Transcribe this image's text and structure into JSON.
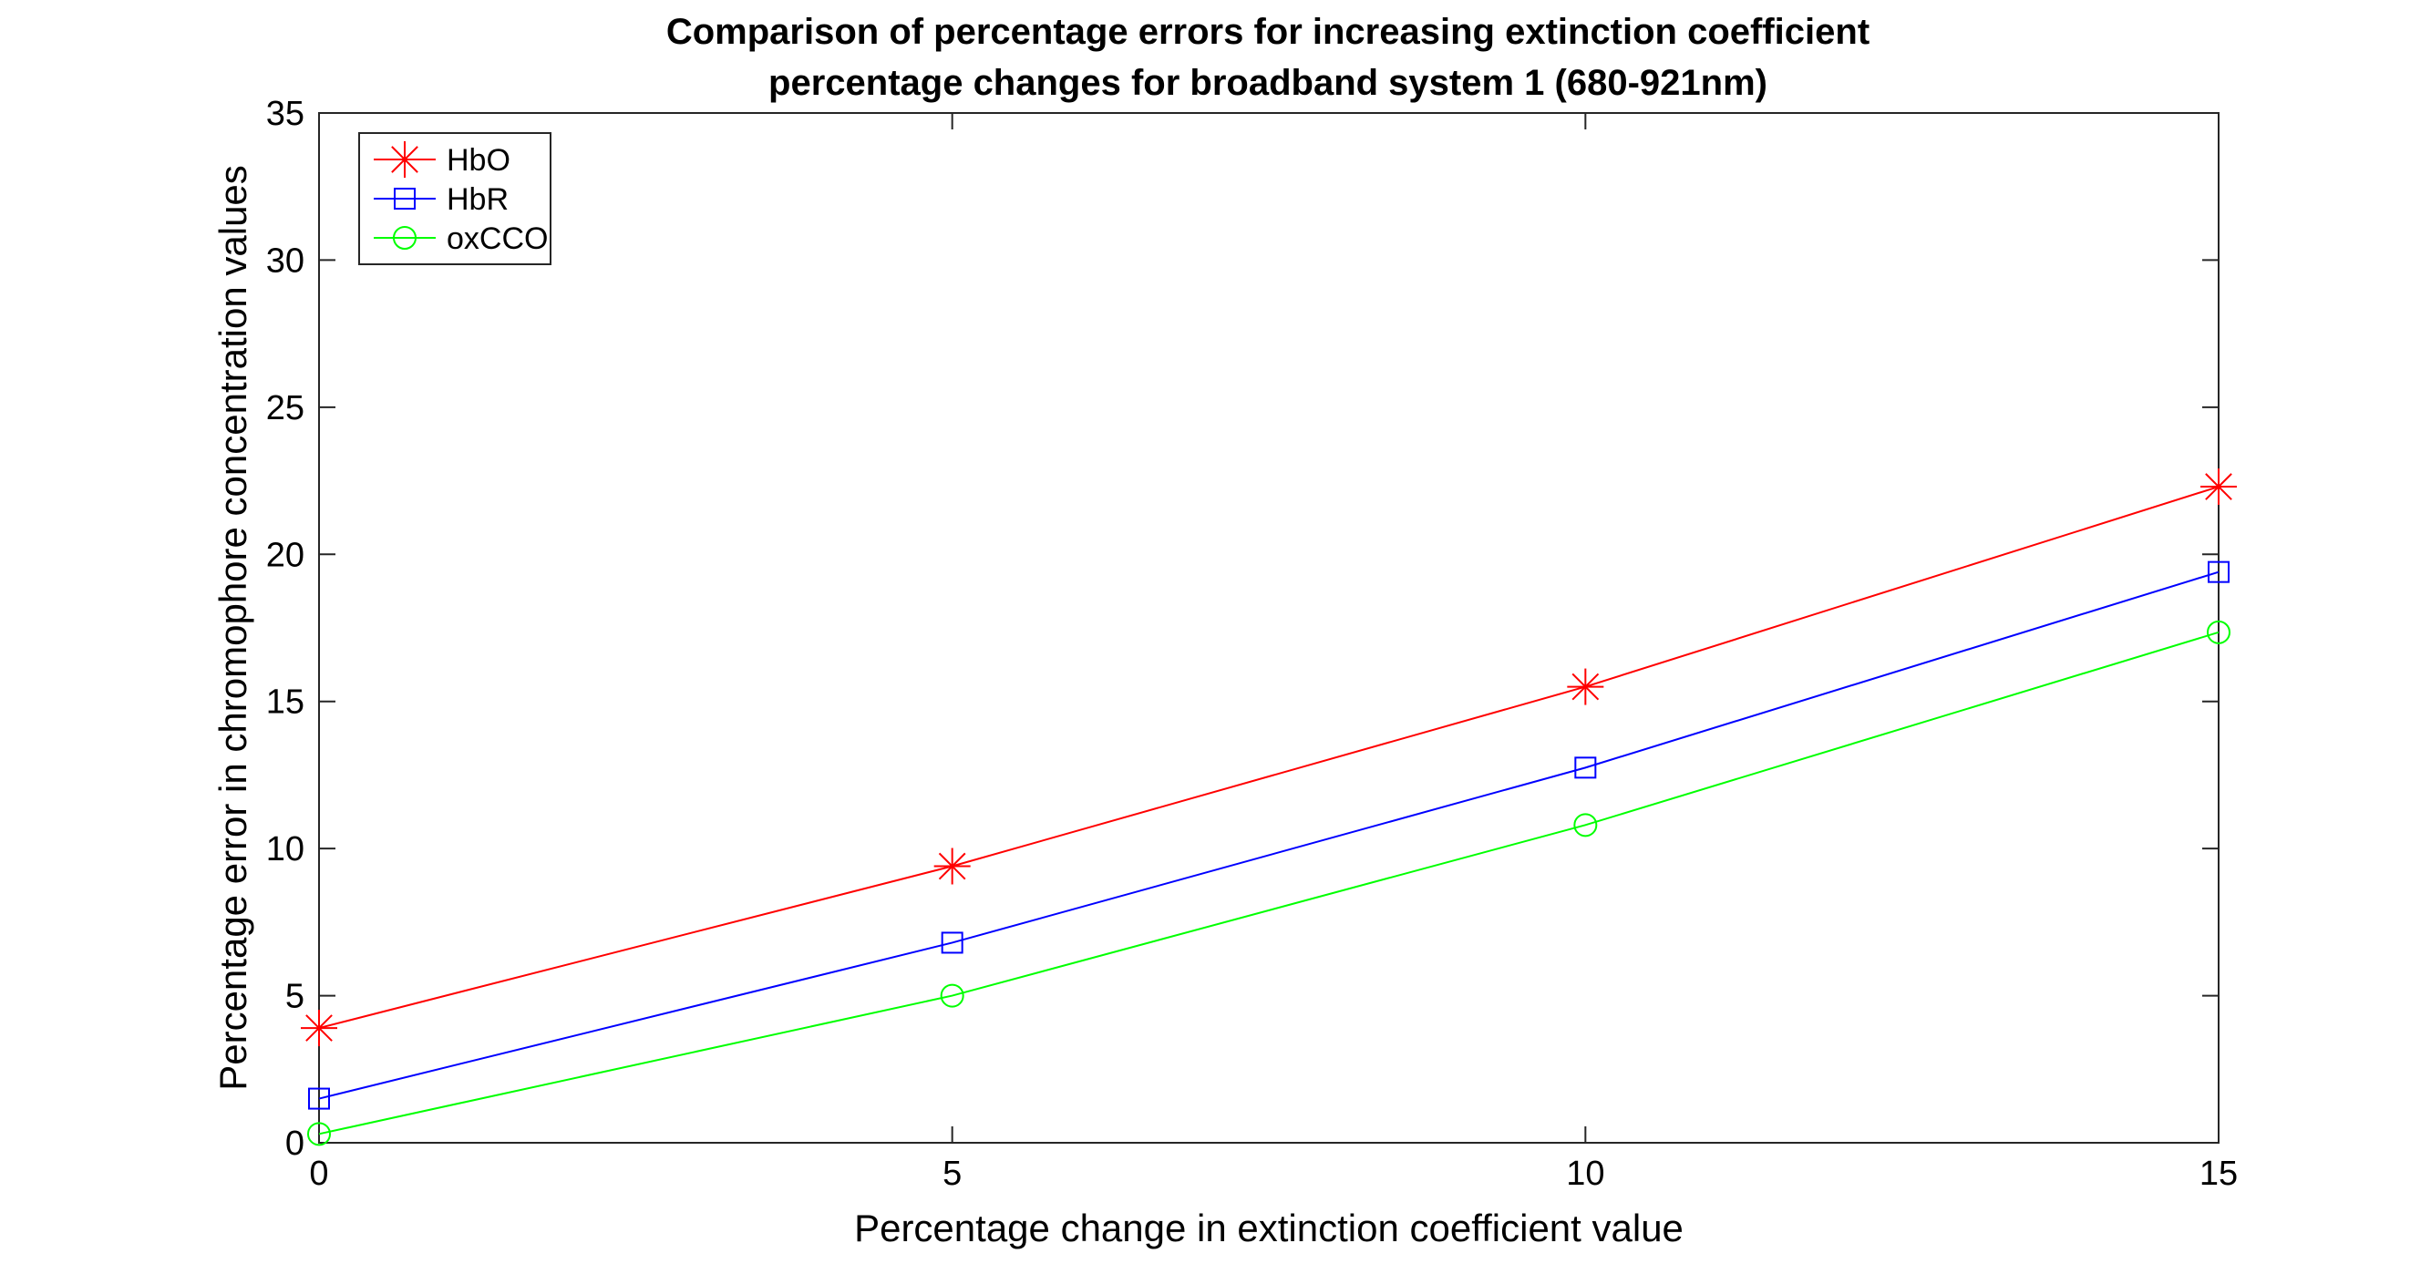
{
  "chart_data": {
    "type": "line",
    "title_lines": [
      "Comparison of percentage errors for increasing extinction coefficient",
      "percentage changes for broadband system 1 (680-921nm)"
    ],
    "xlabel": "Percentage change in extinction coefficient value",
    "ylabel": "Percentage error in chromophore concentration values",
    "x": [
      0,
      5,
      10,
      15
    ],
    "xlim": [
      0,
      15
    ],
    "ylim": [
      0,
      35
    ],
    "xticks": [
      0,
      5,
      10,
      15
    ],
    "yticks": [
      0,
      5,
      10,
      15,
      20,
      25,
      30,
      35
    ],
    "xtick_labels": [
      "0",
      "5",
      "10",
      "15"
    ],
    "ytick_labels": [
      "0",
      "5",
      "10",
      "15",
      "20",
      "25",
      "30",
      "35"
    ],
    "grid": false,
    "legend_position": "top-left",
    "series": [
      {
        "name": "HbO",
        "color": "#ff0000",
        "marker": "asterisk",
        "values": [
          3.9,
          9.4,
          15.5,
          22.3
        ]
      },
      {
        "name": "HbR",
        "color": "#0000ff",
        "marker": "square",
        "values": [
          1.5,
          6.8,
          12.75,
          19.4
        ]
      },
      {
        "name": "oxCCO",
        "color": "#00ff00",
        "marker": "circle",
        "values": [
          0.3,
          5.0,
          10.8,
          17.35
        ]
      }
    ]
  }
}
